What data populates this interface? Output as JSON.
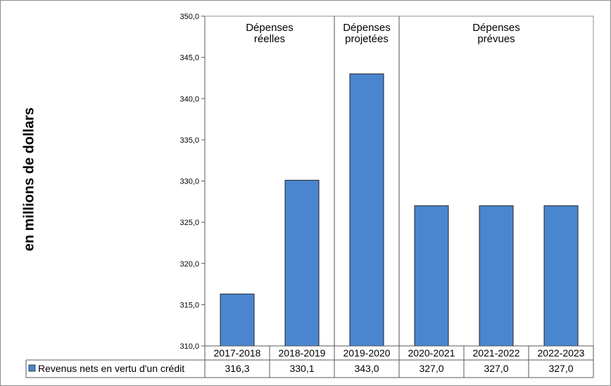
{
  "chart_data": {
    "type": "bar",
    "ylabel": "en millions  de dollars",
    "ylim": [
      310,
      350
    ],
    "yticks": [
      "310,0",
      "315,0",
      "320,0",
      "325,0",
      "330,0",
      "335,0",
      "340,0",
      "345,0",
      "350,0"
    ],
    "categories": [
      "2017-2018",
      "2018-2019",
      "2019-2020",
      "2020-2021",
      "2021-2022",
      "2022-2023"
    ],
    "series": [
      {
        "name": "Revenus nets en vertu d'un crédit",
        "values": [
          316.3,
          330.1,
          343.0,
          327.0,
          327.0,
          327.0
        ],
        "value_labels": [
          "316,3",
          "330,1",
          "343,0",
          "327,0",
          "327,0",
          "327,0"
        ],
        "color": "#4a86d0"
      }
    ],
    "groups": [
      {
        "label": [
          "Dépenses",
          "réelles"
        ],
        "categories": [
          "2017-2018",
          "2018-2019"
        ]
      },
      {
        "label": [
          "Dépenses",
          "projetées"
        ],
        "categories": [
          "2019-2020"
        ]
      },
      {
        "label": [
          "Dépenses",
          "prévues"
        ],
        "categories": [
          "2020-2021",
          "2021-2022",
          "2022-2023"
        ]
      }
    ],
    "grid": false,
    "legend": "data-table-left"
  }
}
